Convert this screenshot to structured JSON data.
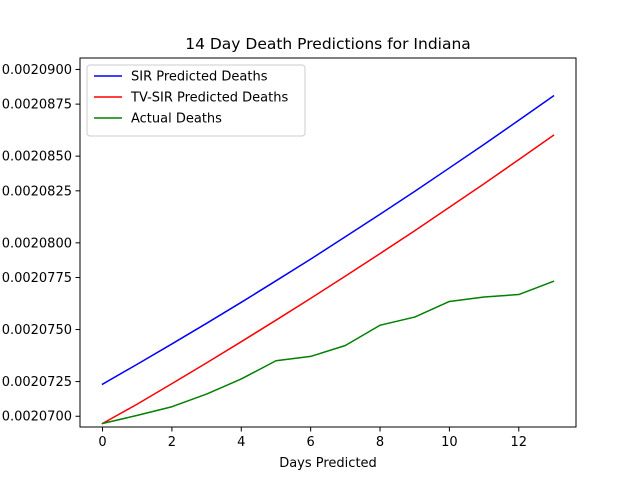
{
  "chart_data": {
    "type": "line",
    "title": "14 Day Death Predictions for Indiana",
    "xlabel": "Days Predicted",
    "ylabel": "",
    "xlim": [
      -0.65,
      13.65
    ],
    "ylim": [
      0.00206938,
      0.00209066
    ],
    "xticks": [
      0,
      2,
      4,
      6,
      8,
      10,
      12
    ],
    "xtick_labels": [
      "0",
      "2",
      "4",
      "6",
      "8",
      "10",
      "12"
    ],
    "yticks": [
      0.00207,
      0.002072,
      0.002075,
      0.002078,
      0.00208,
      0.002083,
      0.002085,
      0.002088,
      0.00209
    ],
    "ytick_labels": [
      "0.0020700",
      "0.0020725",
      "0.0020750",
      "0.0020775",
      "0.0020800",
      "0.0020825",
      "0.0020850",
      "0.0020875",
      "0.0020900"
    ],
    "legend_position": "top-left",
    "grid": false,
    "x": [
      0,
      1,
      2,
      3,
      4,
      5,
      6,
      7,
      8,
      9,
      10,
      11,
      12,
      13
    ],
    "series": [
      {
        "name": "SIR Predicted Deaths",
        "color": "#0000ff",
        "values": [
          0.00207185,
          0.002073,
          0.00207417,
          0.00207536,
          0.00207657,
          0.00207781,
          0.00207906,
          0.00208035,
          0.00208165,
          0.00208297,
          0.00208432,
          0.00208568,
          0.00208707,
          0.00208847
        ]
      },
      {
        "name": "TV-SIR Predicted Deaths",
        "color": "#ff0000",
        "values": [
          0.00206958,
          0.0020707,
          0.00207188,
          0.00207308,
          0.0020743,
          0.00207554,
          0.0020768,
          0.00207808,
          0.00207938,
          0.0020807,
          0.00208205,
          0.00208341,
          0.0020848,
          0.0020862
        ]
      },
      {
        "name": "Actual Deaths",
        "color": "#008000",
        "values": [
          0.00206958,
          0.00207005,
          0.00207055,
          0.00207128,
          0.00207215,
          0.0020732,
          0.00207345,
          0.00207408,
          0.00207525,
          0.00207572,
          0.00207662,
          0.00207688,
          0.00207702,
          0.00207778
        ]
      }
    ]
  }
}
